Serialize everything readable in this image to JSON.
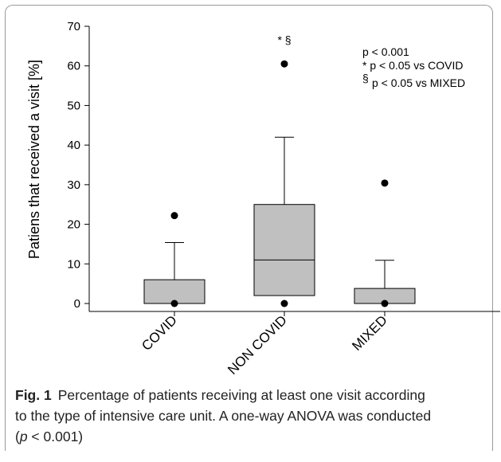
{
  "chart_data": {
    "type": "box",
    "ylabel": "Patiens that received a visit [%]",
    "xlabel": "",
    "ylim": [
      0,
      70
    ],
    "yticks": [
      0,
      10,
      20,
      30,
      40,
      50,
      60,
      70
    ],
    "categories": [
      "COVID",
      "NON COVID",
      "MIXED"
    ],
    "boxes": [
      {
        "category": "COVID",
        "whisker_low": 0,
        "q1": 0,
        "median": 0,
        "q3": 6,
        "whisker_high": 15.4,
        "outliers": [
          22.2,
          0
        ]
      },
      {
        "category": "NON COVID",
        "whisker_low": 2,
        "q1": 2,
        "median": 11,
        "q3": 25,
        "whisker_high": 42,
        "outliers": [
          60.5,
          0
        ],
        "marker": "* §"
      },
      {
        "category": "MIXED",
        "whisker_low": 0,
        "q1": 0,
        "median": 0,
        "q3": 3.8,
        "whisker_high": 10.9,
        "outliers": [
          30.4,
          0
        ]
      }
    ],
    "annotations": [
      "p < 0.001",
      "* p < 0.05 vs COVID",
      "§",
      "p < 0.05 vs MIXED"
    ],
    "grid": false,
    "box_fill": "#c0c0c0"
  },
  "caption": {
    "label": "Fig. 1",
    "line1": "Percentage of patients receiving at least one visit according",
    "line2": "to the type of intensive care unit. A one-way ANOVA was conducted",
    "line3_open": "(",
    "line3_p": "p",
    "line3_rest": " < 0.001)"
  }
}
